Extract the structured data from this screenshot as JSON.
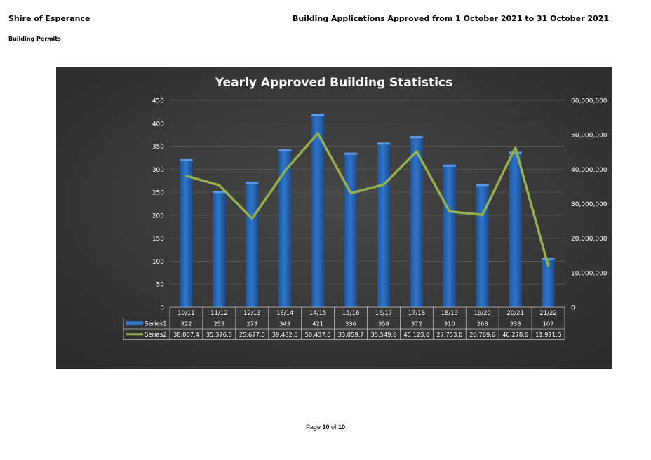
{
  "header": {
    "organisation": "Shire of Esperance",
    "section": "Building Permits",
    "report_title": "Building Applications Approved from 1 October 2021 to 31 October 2021"
  },
  "footer": {
    "page_word": "Page",
    "page_current": "10",
    "of_word": "of",
    "page_total": "10"
  },
  "colors": {
    "chart_background": "#3c3c3c",
    "bar": "#2f74c9",
    "line": "#93b04d",
    "text": "#ffffff",
    "grid": "#5a5a5a"
  },
  "chart_data": {
    "type": "bar",
    "title": "Yearly Approved Building Statistics",
    "categories": [
      "10/11",
      "11/12",
      "12/13",
      "13/14",
      "14/15",
      "15/16",
      "16/17",
      "17/18",
      "18/19",
      "19/20",
      "20/21",
      "21/22"
    ],
    "series": [
      {
        "name": "Series1",
        "type": "bar",
        "axis": "left",
        "values": [
          322,
          253,
          273,
          343,
          421,
          336,
          358,
          372,
          310,
          268,
          338,
          107
        ],
        "table_labels": [
          "322",
          "253",
          "273",
          "343",
          "421",
          "336",
          "358",
          "372",
          "310",
          "268",
          "338",
          "107"
        ]
      },
      {
        "name": "Series2",
        "type": "line",
        "axis": "right",
        "values": [
          38067400,
          35376000,
          25677000,
          39482000,
          50437000,
          33059700,
          35549800,
          45123000,
          27753000,
          26769600,
          46278600,
          11971500
        ],
        "table_labels": [
          "38,067,4",
          "35,376,0",
          "25,677,0",
          "39,482,0",
          "50,437,0",
          "33,059,7",
          "35,549,8",
          "45,123,0",
          "27,753,0",
          "26,769,6",
          "46,278,6",
          "11,971,5"
        ]
      }
    ],
    "left_axis": {
      "ylim": [
        0,
        450
      ],
      "ticks": [
        "0",
        "50",
        "100",
        "150",
        "200",
        "250",
        "300",
        "350",
        "400",
        "450"
      ]
    },
    "right_axis": {
      "ylim": [
        0,
        60000000
      ],
      "ticks": [
        "0",
        "10,000,000",
        "20,000,000",
        "30,000,000",
        "40,000,000",
        "50,000,000",
        "60,000,000"
      ]
    },
    "grid": true,
    "legend": "data-table-below"
  }
}
